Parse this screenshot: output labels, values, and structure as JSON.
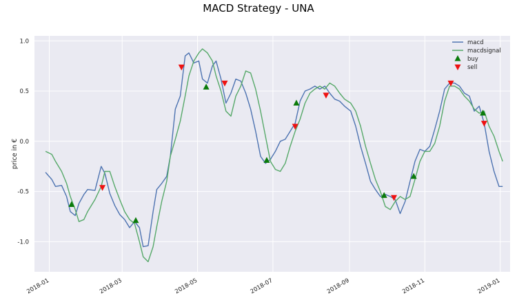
{
  "chart_data": {
    "type": "line",
    "title": "MACD Strategy - UNA",
    "ylabel": "price in €",
    "xlabel": "",
    "x_ticks": [
      "2018-01",
      "2018-03",
      "2018-05",
      "2018-07",
      "2018-09",
      "2018-11",
      "2019-01"
    ],
    "y_ticks": [
      "1.0",
      "0.5",
      "0.0",
      "-0.5",
      "-1.0"
    ],
    "ylim": [
      -1.3,
      1.05
    ],
    "xlim": [
      "2017-12-20",
      "2019-01-09"
    ],
    "grid": true,
    "legend_position": "top-right",
    "colors": {
      "macd": "#4c72b0",
      "macdsignal": "#55a868",
      "buy": "#0a7a0a",
      "sell": "#ee1111",
      "background": "#eaeaf2",
      "grid": "#ffffff"
    },
    "series": [
      {
        "name": "macd",
        "points": [
          [
            "2017-12-29",
            -0.31
          ],
          [
            "2018-01-03",
            -0.38
          ],
          [
            "2018-01-06",
            -0.45
          ],
          [
            "2018-01-11",
            -0.44
          ],
          [
            "2018-01-15",
            -0.55
          ],
          [
            "2018-01-18",
            -0.7
          ],
          [
            "2018-01-22",
            -0.74
          ],
          [
            "2018-01-25",
            -0.62
          ],
          [
            "2018-01-29",
            -0.53
          ],
          [
            "2018-02-01",
            -0.48
          ],
          [
            "2018-02-07",
            -0.49
          ],
          [
            "2018-02-12",
            -0.25
          ],
          [
            "2018-02-15",
            -0.32
          ],
          [
            "2018-02-19",
            -0.52
          ],
          [
            "2018-02-23",
            -0.64
          ],
          [
            "2018-02-27",
            -0.73
          ],
          [
            "2018-03-03",
            -0.78
          ],
          [
            "2018-03-07",
            -0.86
          ],
          [
            "2018-03-11",
            -0.8
          ],
          [
            "2018-03-15",
            -0.86
          ],
          [
            "2018-03-18",
            -1.05
          ],
          [
            "2018-03-22",
            -1.04
          ],
          [
            "2018-03-26",
            -0.7
          ],
          [
            "2018-03-29",
            -0.48
          ],
          [
            "2018-04-02",
            -0.42
          ],
          [
            "2018-04-06",
            -0.35
          ],
          [
            "2018-04-09",
            -0.15
          ],
          [
            "2018-04-13",
            0.32
          ],
          [
            "2018-04-17",
            0.45
          ],
          [
            "2018-04-21",
            0.85
          ],
          [
            "2018-04-24",
            0.88
          ],
          [
            "2018-04-28",
            0.78
          ],
          [
            "2018-05-02",
            0.8
          ],
          [
            "2018-05-05",
            0.62
          ],
          [
            "2018-05-09",
            0.58
          ],
          [
            "2018-05-13",
            0.75
          ],
          [
            "2018-05-16",
            0.8
          ],
          [
            "2018-05-20",
            0.62
          ],
          [
            "2018-05-24",
            0.38
          ],
          [
            "2018-05-28",
            0.48
          ],
          [
            "2018-06-01",
            0.62
          ],
          [
            "2018-06-05",
            0.6
          ],
          [
            "2018-06-09",
            0.48
          ],
          [
            "2018-06-13",
            0.32
          ],
          [
            "2018-06-17",
            0.1
          ],
          [
            "2018-06-21",
            -0.15
          ],
          [
            "2018-06-25",
            -0.22
          ],
          [
            "2018-06-29",
            -0.18
          ],
          [
            "2018-07-03",
            -0.1
          ],
          [
            "2018-07-07",
            0.0
          ],
          [
            "2018-07-11",
            0.02
          ],
          [
            "2018-07-15",
            0.1
          ],
          [
            "2018-07-19",
            0.18
          ],
          [
            "2018-07-23",
            0.4
          ],
          [
            "2018-07-27",
            0.5
          ],
          [
            "2018-07-31",
            0.52
          ],
          [
            "2018-08-04",
            0.55
          ],
          [
            "2018-08-08",
            0.52
          ],
          [
            "2018-08-12",
            0.55
          ],
          [
            "2018-08-16",
            0.48
          ],
          [
            "2018-08-20",
            0.42
          ],
          [
            "2018-08-24",
            0.4
          ],
          [
            "2018-08-28",
            0.35
          ],
          [
            "2018-09-02",
            0.3
          ],
          [
            "2018-09-06",
            0.15
          ],
          [
            "2018-09-10",
            -0.05
          ],
          [
            "2018-09-14",
            -0.22
          ],
          [
            "2018-09-18",
            -0.4
          ],
          [
            "2018-09-22",
            -0.48
          ],
          [
            "2018-09-26",
            -0.55
          ],
          [
            "2018-09-30",
            -0.53
          ],
          [
            "2018-10-04",
            -0.55
          ],
          [
            "2018-10-08",
            -0.58
          ],
          [
            "2018-10-12",
            -0.72
          ],
          [
            "2018-10-16",
            -0.6
          ],
          [
            "2018-10-20",
            -0.4
          ],
          [
            "2018-10-24",
            -0.2
          ],
          [
            "2018-10-28",
            -0.08
          ],
          [
            "2018-11-01",
            -0.1
          ],
          [
            "2018-11-05",
            -0.05
          ],
          [
            "2018-11-09",
            0.12
          ],
          [
            "2018-11-13",
            0.3
          ],
          [
            "2018-11-17",
            0.52
          ],
          [
            "2018-11-21",
            0.58
          ],
          [
            "2018-11-25",
            0.58
          ],
          [
            "2018-11-29",
            0.55
          ],
          [
            "2018-12-03",
            0.48
          ],
          [
            "2018-12-07",
            0.45
          ],
          [
            "2018-12-11",
            0.3
          ],
          [
            "2018-12-15",
            0.35
          ],
          [
            "2018-12-19",
            0.18
          ],
          [
            "2018-12-23",
            -0.1
          ],
          [
            "2018-12-27",
            -0.3
          ],
          [
            "2018-12-31",
            -0.45
          ],
          [
            "2019-01-03",
            -0.45
          ]
        ]
      },
      {
        "name": "macdsignal",
        "points": [
          [
            "2017-12-29",
            -0.1
          ],
          [
            "2018-01-03",
            -0.13
          ],
          [
            "2018-01-06",
            -0.2
          ],
          [
            "2018-01-11",
            -0.3
          ],
          [
            "2018-01-15",
            -0.42
          ],
          [
            "2018-01-18",
            -0.55
          ],
          [
            "2018-01-22",
            -0.68
          ],
          [
            "2018-01-25",
            -0.8
          ],
          [
            "2018-01-29",
            -0.78
          ],
          [
            "2018-02-01",
            -0.7
          ],
          [
            "2018-02-07",
            -0.58
          ],
          [
            "2018-02-12",
            -0.45
          ],
          [
            "2018-02-15",
            -0.3
          ],
          [
            "2018-02-19",
            -0.3
          ],
          [
            "2018-02-23",
            -0.45
          ],
          [
            "2018-02-27",
            -0.58
          ],
          [
            "2018-03-03",
            -0.7
          ],
          [
            "2018-03-07",
            -0.78
          ],
          [
            "2018-03-11",
            -0.82
          ],
          [
            "2018-03-15",
            -1.0
          ],
          [
            "2018-03-18",
            -1.15
          ],
          [
            "2018-03-22",
            -1.2
          ],
          [
            "2018-03-26",
            -1.05
          ],
          [
            "2018-03-29",
            -0.85
          ],
          [
            "2018-04-02",
            -0.6
          ],
          [
            "2018-04-06",
            -0.4
          ],
          [
            "2018-04-09",
            -0.15
          ],
          [
            "2018-04-13",
            0.02
          ],
          [
            "2018-04-17",
            0.2
          ],
          [
            "2018-04-21",
            0.45
          ],
          [
            "2018-04-24",
            0.65
          ],
          [
            "2018-04-28",
            0.8
          ],
          [
            "2018-05-02",
            0.88
          ],
          [
            "2018-05-05",
            0.92
          ],
          [
            "2018-05-09",
            0.88
          ],
          [
            "2018-05-13",
            0.8
          ],
          [
            "2018-05-16",
            0.65
          ],
          [
            "2018-05-20",
            0.5
          ],
          [
            "2018-05-24",
            0.3
          ],
          [
            "2018-05-28",
            0.25
          ],
          [
            "2018-06-01",
            0.45
          ],
          [
            "2018-06-05",
            0.55
          ],
          [
            "2018-06-09",
            0.7
          ],
          [
            "2018-06-13",
            0.68
          ],
          [
            "2018-06-17",
            0.52
          ],
          [
            "2018-06-21",
            0.3
          ],
          [
            "2018-06-25",
            0.05
          ],
          [
            "2018-06-29",
            -0.2
          ],
          [
            "2018-07-03",
            -0.28
          ],
          [
            "2018-07-07",
            -0.3
          ],
          [
            "2018-07-11",
            -0.22
          ],
          [
            "2018-07-15",
            -0.05
          ],
          [
            "2018-07-19",
            0.1
          ],
          [
            "2018-07-23",
            0.22
          ],
          [
            "2018-07-27",
            0.38
          ],
          [
            "2018-07-31",
            0.48
          ],
          [
            "2018-08-04",
            0.52
          ],
          [
            "2018-08-08",
            0.55
          ],
          [
            "2018-08-12",
            0.52
          ],
          [
            "2018-08-16",
            0.58
          ],
          [
            "2018-08-20",
            0.55
          ],
          [
            "2018-08-24",
            0.48
          ],
          [
            "2018-08-28",
            0.42
          ],
          [
            "2018-09-02",
            0.38
          ],
          [
            "2018-09-06",
            0.3
          ],
          [
            "2018-09-10",
            0.15
          ],
          [
            "2018-09-14",
            -0.05
          ],
          [
            "2018-09-18",
            -0.22
          ],
          [
            "2018-09-22",
            -0.38
          ],
          [
            "2018-09-26",
            -0.5
          ],
          [
            "2018-09-30",
            -0.65
          ],
          [
            "2018-10-04",
            -0.68
          ],
          [
            "2018-10-08",
            -0.6
          ],
          [
            "2018-10-12",
            -0.55
          ],
          [
            "2018-10-16",
            -0.58
          ],
          [
            "2018-10-20",
            -0.55
          ],
          [
            "2018-10-24",
            -0.38
          ],
          [
            "2018-10-28",
            -0.2
          ],
          [
            "2018-11-01",
            -0.1
          ],
          [
            "2018-11-05",
            -0.1
          ],
          [
            "2018-11-09",
            -0.02
          ],
          [
            "2018-11-13",
            0.15
          ],
          [
            "2018-11-17",
            0.4
          ],
          [
            "2018-11-21",
            0.55
          ],
          [
            "2018-11-25",
            0.55
          ],
          [
            "2018-11-29",
            0.52
          ],
          [
            "2018-12-03",
            0.45
          ],
          [
            "2018-12-07",
            0.4
          ],
          [
            "2018-12-11",
            0.32
          ],
          [
            "2018-12-15",
            0.28
          ],
          [
            "2018-12-19",
            0.3
          ],
          [
            "2018-12-23",
            0.15
          ],
          [
            "2018-12-27",
            0.05
          ],
          [
            "2018-12-31",
            -0.1
          ],
          [
            "2019-01-03",
            -0.2
          ]
        ]
      }
    ],
    "markers": {
      "buy": [
        [
          "2018-01-19",
          -0.63
        ],
        [
          "2018-03-12",
          -0.79
        ],
        [
          "2018-05-08",
          0.54
        ],
        [
          "2018-06-26",
          -0.19
        ],
        [
          "2018-07-20",
          0.38
        ],
        [
          "2018-09-29",
          -0.54
        ],
        [
          "2018-10-23",
          -0.35
        ],
        [
          "2018-12-18",
          0.28
        ]
      ],
      "sell": [
        [
          "2018-02-13",
          -0.46
        ],
        [
          "2018-04-18",
          0.74
        ],
        [
          "2018-05-23",
          0.58
        ],
        [
          "2018-07-19",
          0.15
        ],
        [
          "2018-08-13",
          0.46
        ],
        [
          "2018-10-07",
          -0.56
        ],
        [
          "2018-11-22",
          0.58
        ],
        [
          "2018-12-19",
          0.18
        ]
      ]
    },
    "legend": [
      {
        "label": "macd",
        "kind": "line",
        "color_key": "macd"
      },
      {
        "label": "macdsignal",
        "kind": "line",
        "color_key": "macdsignal"
      },
      {
        "label": "buy",
        "kind": "triangle-up",
        "color_key": "buy"
      },
      {
        "label": "sell",
        "kind": "triangle-down",
        "color_key": "sell"
      }
    ]
  }
}
